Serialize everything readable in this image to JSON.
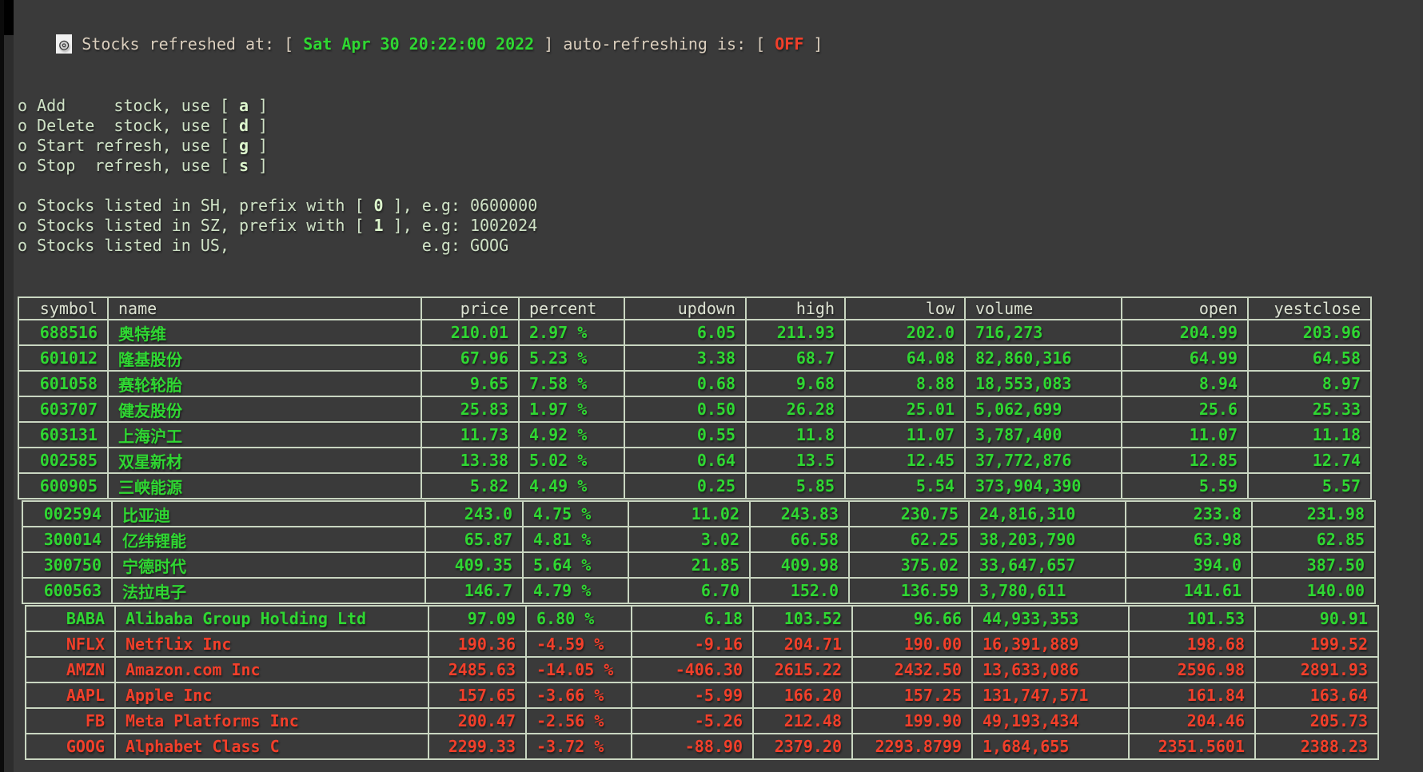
{
  "colors": {
    "bg": "#3a3a3a",
    "plain": "#dbcfbe",
    "menu": "#cfe2c6",
    "key": "#ddf6cd",
    "header": "#dde3d3",
    "border": "#c9d6c1",
    "green": "#2fd732",
    "red": "#f23f2a"
  },
  "status": {
    "cursor_glyph": "◎",
    "segments": [
      {
        "t": "Stocks refreshed at: [ ",
        "style": "plain"
      },
      {
        "t": "Sat Apr 30 20:22:00 2022",
        "style": "green"
      },
      {
        "t": " ] auto-refreshing is: [ ",
        "style": "plain"
      },
      {
        "t": "OFF",
        "style": "red"
      },
      {
        "t": " ]",
        "style": "plain"
      }
    ]
  },
  "menu": {
    "bullet": "o",
    "lines": [
      [
        {
          "t": "Add     stock, use [ ",
          "style": "text"
        },
        {
          "t": "a",
          "style": "key"
        },
        {
          "t": " ]",
          "style": "text"
        }
      ],
      [
        {
          "t": "Delete  stock, use [ ",
          "style": "text"
        },
        {
          "t": "d",
          "style": "key"
        },
        {
          "t": " ]",
          "style": "text"
        }
      ],
      [
        {
          "t": "Start refresh, use [ ",
          "style": "text"
        },
        {
          "t": "g",
          "style": "key"
        },
        {
          "t": " ]",
          "style": "text"
        }
      ],
      [
        {
          "t": "Stop  refresh, use [ ",
          "style": "text"
        },
        {
          "t": "s",
          "style": "key"
        },
        {
          "t": " ]",
          "style": "text"
        }
      ]
    ]
  },
  "hints": {
    "bullet": "o",
    "lines": [
      [
        {
          "t": "Stocks listed in SH, prefix with [ ",
          "style": "text"
        },
        {
          "t": "0",
          "style": "key"
        },
        {
          "t": " ], e.g: 0600000",
          "style": "text"
        }
      ],
      [
        {
          "t": "Stocks listed in SZ, prefix with [ ",
          "style": "text"
        },
        {
          "t": "1",
          "style": "key"
        },
        {
          "t": " ], e.g: 1002024",
          "style": "text"
        }
      ],
      [
        {
          "t": "Stocks listed in US,                    e.g: GOOG",
          "style": "text"
        }
      ]
    ]
  },
  "table": {
    "headers": [
      "symbol",
      "name",
      "price",
      "percent",
      "updown",
      "high",
      "low",
      "volume",
      "open",
      "yestclose"
    ],
    "groups": [
      {
        "rows": [
          {
            "trend": "up",
            "cells": [
              "688516",
              "奥特维",
              "210.01",
              "2.97 %",
              "6.05",
              "211.93",
              "202.0",
              "716,273",
              "204.99",
              "203.96"
            ]
          },
          {
            "trend": "up",
            "cells": [
              "601012",
              "隆基股份",
              "67.96",
              "5.23 %",
              "3.38",
              "68.7",
              "64.08",
              "82,860,316",
              "64.99",
              "64.58"
            ]
          },
          {
            "trend": "up",
            "cells": [
              "601058",
              "赛轮轮胎",
              "9.65",
              "7.58 %",
              "0.68",
              "9.68",
              "8.88",
              "18,553,083",
              "8.94",
              "8.97"
            ]
          },
          {
            "trend": "up",
            "cells": [
              "603707",
              "健友股份",
              "25.83",
              "1.97 %",
              "0.50",
              "26.28",
              "25.01",
              "5,062,699",
              "25.6",
              "25.33"
            ]
          },
          {
            "trend": "up",
            "cells": [
              "603131",
              "上海沪工",
              "11.73",
              "4.92 %",
              "0.55",
              "11.8",
              "11.07",
              "3,787,400",
              "11.07",
              "11.18"
            ]
          },
          {
            "trend": "up",
            "cells": [
              "002585",
              "双星新材",
              "13.38",
              "5.02 %",
              "0.64",
              "13.5",
              "12.45",
              "37,772,876",
              "12.85",
              "12.74"
            ]
          },
          {
            "trend": "up",
            "cells": [
              "600905",
              "三峡能源",
              "5.82",
              "4.49 %",
              "0.25",
              "5.85",
              "5.54",
              "373,904,390",
              "5.59",
              "5.57"
            ]
          }
        ]
      },
      {
        "rows": [
          {
            "trend": "up",
            "cells": [
              "002594",
              "比亚迪",
              "243.0",
              "4.75 %",
              "11.02",
              "243.83",
              "230.75",
              "24,816,310",
              "233.8",
              "231.98"
            ]
          },
          {
            "trend": "up",
            "cells": [
              "300014",
              "亿纬锂能",
              "65.87",
              "4.81 %",
              "3.02",
              "66.58",
              "62.25",
              "38,203,790",
              "63.98",
              "62.85"
            ]
          },
          {
            "trend": "up",
            "cells": [
              "300750",
              "宁德时代",
              "409.35",
              "5.64 %",
              "21.85",
              "409.98",
              "375.02",
              "33,647,657",
              "394.0",
              "387.50"
            ]
          },
          {
            "trend": "up",
            "cells": [
              "600563",
              "法拉电子",
              "146.7",
              "4.79 %",
              "6.70",
              "152.0",
              "136.59",
              "3,780,611",
              "141.61",
              "140.00"
            ]
          }
        ]
      },
      {
        "rows": [
          {
            "trend": "up",
            "cells": [
              "BABA",
              "Alibaba Group Holding Ltd",
              "97.09",
              "6.80 %",
              "6.18",
              "103.52",
              "96.66",
              "44,933,353",
              "101.53",
              "90.91"
            ]
          },
          {
            "trend": "down",
            "cells": [
              "NFLX",
              "Netflix Inc",
              "190.36",
              "-4.59 %",
              "-9.16",
              "204.71",
              "190.00",
              "16,391,889",
              "198.68",
              "199.52"
            ]
          },
          {
            "trend": "down",
            "cells": [
              "AMZN",
              "Amazon.com Inc",
              "2485.63",
              "-14.05 %",
              "-406.30",
              "2615.22",
              "2432.50",
              "13,633,086",
              "2596.98",
              "2891.93"
            ]
          },
          {
            "trend": "down",
            "cells": [
              "AAPL",
              "Apple Inc",
              "157.65",
              "-3.66 %",
              "-5.99",
              "166.20",
              "157.25",
              "131,747,571",
              "161.84",
              "163.64"
            ]
          },
          {
            "trend": "down",
            "cells": [
              "FB",
              "Meta Platforms Inc",
              "200.47",
              "-2.56 %",
              "-5.26",
              "212.48",
              "199.90",
              "49,193,434",
              "204.46",
              "205.73"
            ]
          },
          {
            "trend": "down",
            "cells": [
              "GOOG",
              "Alphabet Class C",
              "2299.33",
              "-3.72 %",
              "-88.90",
              "2379.20",
              "2293.8799",
              "1,684,655",
              "2351.5601",
              "2388.23"
            ]
          }
        ]
      }
    ]
  }
}
